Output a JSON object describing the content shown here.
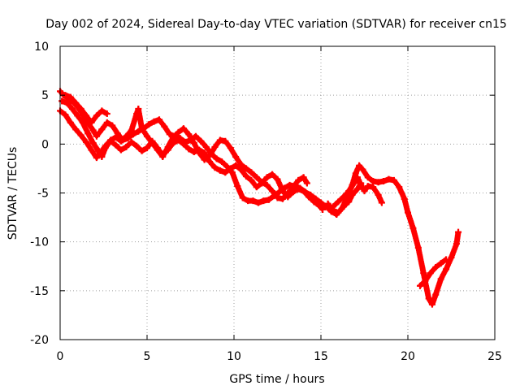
{
  "chart_data": {
    "type": "scatter",
    "title": "Day 002 of 2024, Sidereal Day-to-day VTEC variation (SDTVAR) for receiver cn15",
    "xlabel": "GPS time / hours",
    "ylabel": "SDTVAR / TECUs",
    "xlim": [
      0,
      25
    ],
    "ylim": [
      -20,
      10
    ],
    "xticks": [
      0,
      5,
      10,
      15,
      20,
      25
    ],
    "yticks": [
      -20,
      -15,
      -10,
      -5,
      0,
      5,
      10
    ],
    "xtick_labels": [
      "0",
      "5",
      "10",
      "15",
      "20",
      "25"
    ],
    "ytick_labels": [
      "-20",
      "-15",
      "-10",
      "-5",
      "0",
      "5",
      "10"
    ],
    "grid": true,
    "marker": "+",
    "series": [
      {
        "name": "SDTVAR",
        "color": "#ff0000",
        "tracks": [
          [
            [
              0.0,
              5.4
            ],
            [
              0.2,
              5.0
            ],
            [
              0.5,
              4.6
            ],
            [
              0.8,
              4.2
            ],
            [
              1.0,
              3.8
            ],
            [
              1.3,
              3.0
            ],
            [
              1.6,
              2.2
            ],
            [
              1.9,
              1.4
            ],
            [
              2.1,
              0.8
            ],
            [
              2.4,
              1.5
            ],
            [
              2.7,
              2.2
            ],
            [
              3.0,
              1.9
            ],
            [
              3.3,
              1.1
            ],
            [
              3.6,
              0.4
            ],
            [
              3.9,
              0.6
            ],
            [
              4.2,
              1.0
            ],
            [
              4.5,
              1.3
            ],
            [
              4.8,
              1.6
            ],
            [
              5.1,
              2.0
            ],
            [
              5.4,
              2.3
            ],
            [
              5.7,
              2.5
            ],
            [
              6.0,
              1.8
            ],
            [
              6.3,
              1.0
            ],
            [
              6.6,
              0.8
            ],
            [
              6.9,
              0.6
            ],
            [
              7.2,
              0.2
            ],
            [
              7.5,
              0.4
            ],
            [
              7.8,
              0.8
            ],
            [
              8.1,
              0.3
            ],
            [
              8.4,
              -0.3
            ],
            [
              8.7,
              -1.0
            ],
            [
              9.0,
              -1.5
            ],
            [
              9.3,
              -1.8
            ],
            [
              9.6,
              -2.3
            ],
            [
              9.9,
              -2.9
            ],
            [
              10.2,
              -4.3
            ],
            [
              10.5,
              -5.5
            ],
            [
              10.8,
              -5.8
            ],
            [
              11.1,
              -5.8
            ],
            [
              11.4,
              -6.0
            ],
            [
              11.7,
              -5.8
            ],
            [
              12.0,
              -5.7
            ],
            [
              12.3,
              -5.3
            ],
            [
              12.6,
              -4.9
            ],
            [
              12.9,
              -4.5
            ],
            [
              13.2,
              -4.2
            ],
            [
              13.5,
              -4.3
            ],
            [
              13.8,
              -4.5
            ],
            [
              14.1,
              -4.9
            ],
            [
              14.4,
              -5.2
            ],
            [
              14.7,
              -5.6
            ],
            [
              15.0,
              -6.0
            ],
            [
              15.3,
              -6.4
            ],
            [
              15.6,
              -6.9
            ],
            [
              15.9,
              -7.2
            ],
            [
              16.2,
              -6.6
            ],
            [
              16.5,
              -5.5
            ],
            [
              16.8,
              -4.2
            ],
            [
              17.0,
              -3.0
            ],
            [
              17.2,
              -2.2
            ],
            [
              17.4,
              -2.6
            ],
            [
              17.7,
              -3.4
            ],
            [
              18.0,
              -3.8
            ],
            [
              18.3,
              -3.9
            ],
            [
              18.6,
              -3.8
            ],
            [
              18.9,
              -3.6
            ],
            [
              19.2,
              -3.7
            ],
            [
              19.5,
              -4.4
            ],
            [
              19.8,
              -5.6
            ],
            [
              20.0,
              -7.0
            ],
            [
              20.3,
              -8.6
            ],
            [
              20.6,
              -10.6
            ],
            [
              20.9,
              -13.2
            ],
            [
              21.2,
              -15.8
            ],
            [
              21.4,
              -16.4
            ],
            [
              21.6,
              -15.4
            ],
            [
              21.9,
              -13.8
            ],
            [
              22.2,
              -12.8
            ],
            [
              22.5,
              -11.6
            ],
            [
              22.8,
              -10.2
            ],
            [
              22.9,
              -9.0
            ]
          ],
          [
            [
              0.1,
              4.4
            ],
            [
              0.4,
              4.2
            ],
            [
              0.7,
              3.6
            ],
            [
              1.0,
              2.9
            ],
            [
              1.3,
              2.2
            ],
            [
              1.6,
              1.1
            ],
            [
              1.9,
              0.1
            ],
            [
              2.2,
              -0.7
            ],
            [
              2.4,
              -1.3
            ],
            [
              2.6,
              -0.4
            ],
            [
              2.9,
              0.3
            ],
            [
              3.2,
              -0.1
            ],
            [
              3.5,
              -0.6
            ],
            [
              3.8,
              -0.3
            ],
            [
              4.1,
              0.2
            ],
            [
              4.4,
              -0.2
            ],
            [
              4.7,
              -0.7
            ],
            [
              5.0,
              -0.4
            ],
            [
              5.3,
              0.3
            ],
            [
              5.6,
              -0.4
            ],
            [
              5.9,
              -1.1
            ],
            [
              6.2,
              -0.6
            ],
            [
              6.5,
              0.1
            ],
            [
              6.8,
              0.4
            ],
            [
              7.1,
              0.0
            ],
            [
              7.4,
              -0.5
            ],
            [
              7.7,
              -0.8
            ],
            [
              8.0,
              -0.6
            ],
            [
              8.3,
              -0.9
            ],
            [
              8.6,
              -1.8
            ],
            [
              8.9,
              -2.4
            ],
            [
              9.2,
              -2.7
            ],
            [
              9.5,
              -2.9
            ],
            [
              9.8,
              -2.5
            ],
            [
              10.1,
              -2.2
            ],
            [
              10.4,
              -2.6
            ],
            [
              10.7,
              -3.3
            ],
            [
              11.0,
              -3.7
            ],
            [
              11.3,
              -4.4
            ],
            [
              11.6,
              -4.0
            ],
            [
              11.9,
              -3.4
            ],
            [
              12.2,
              -3.1
            ],
            [
              12.5,
              -3.6
            ],
            [
              12.8,
              -4.8
            ],
            [
              13.1,
              -5.4
            ],
            [
              13.4,
              -4.9
            ],
            [
              13.7,
              -4.6
            ],
            [
              14.0,
              -4.8
            ],
            [
              14.3,
              -5.4
            ],
            [
              14.6,
              -5.9
            ],
            [
              14.9,
              -6.3
            ],
            [
              15.1,
              -6.7
            ]
          ],
          [
            [
              0.0,
              3.4
            ],
            [
              0.3,
              3.0
            ],
            [
              0.6,
              2.2
            ],
            [
              0.9,
              1.5
            ],
            [
              1.2,
              0.9
            ],
            [
              1.5,
              0.2
            ],
            [
              1.8,
              -0.6
            ],
            [
              2.1,
              -1.4
            ],
            [
              2.3,
              -0.9
            ],
            [
              2.6,
              -0.2
            ],
            [
              2.9,
              0.4
            ],
            [
              3.2,
              0.7
            ],
            [
              3.5,
              0.3
            ],
            [
              3.8,
              0.8
            ],
            [
              4.1,
              1.4
            ],
            [
              4.4,
              3.1
            ],
            [
              4.5,
              3.6
            ],
            [
              4.7,
              1.6
            ],
            [
              5.0,
              0.8
            ],
            [
              5.3,
              0.1
            ],
            [
              5.6,
              -0.6
            ],
            [
              5.9,
              -1.3
            ],
            [
              6.2,
              -0.3
            ],
            [
              6.5,
              0.7
            ],
            [
              6.8,
              1.2
            ],
            [
              7.1,
              1.6
            ],
            [
              7.4,
              1.0
            ],
            [
              7.7,
              0.1
            ],
            [
              8.0,
              -0.9
            ],
            [
              8.3,
              -1.6
            ],
            [
              8.6,
              -1.2
            ],
            [
              8.9,
              -0.3
            ],
            [
              9.2,
              0.4
            ],
            [
              9.5,
              0.3
            ],
            [
              9.8,
              -0.4
            ],
            [
              10.1,
              -1.3
            ],
            [
              10.4,
              -2.1
            ],
            [
              10.7,
              -2.5
            ],
            [
              11.0,
              -2.9
            ],
            [
              11.3,
              -3.4
            ],
            [
              11.6,
              -3.9
            ],
            [
              11.9,
              -4.2
            ],
            [
              12.2,
              -4.8
            ],
            [
              12.5,
              -5.5
            ],
            [
              12.8,
              -5.6
            ],
            [
              13.1,
              -5.0
            ],
            [
              13.4,
              -4.4
            ],
            [
              13.7,
              -3.7
            ],
            [
              14.0,
              -3.4
            ],
            [
              14.2,
              -4.0
            ]
          ],
          [
            [
              0.3,
              5.0
            ],
            [
              0.6,
              4.8
            ],
            [
              0.9,
              4.2
            ],
            [
              1.2,
              3.6
            ],
            [
              1.5,
              2.9
            ],
            [
              1.8,
              2.2
            ],
            [
              2.1,
              2.9
            ],
            [
              2.4,
              3.4
            ],
            [
              2.7,
              3.1
            ]
          ],
          [
            [
              15.7,
              -6.4
            ],
            [
              16.0,
              -5.9
            ],
            [
              16.3,
              -5.4
            ],
            [
              16.6,
              -4.8
            ],
            [
              16.9,
              -4.0
            ],
            [
              17.1,
              -3.4
            ],
            [
              17.3,
              -4.2
            ],
            [
              17.5,
              -4.8
            ],
            [
              17.7,
              -4.3
            ],
            [
              18.0,
              -4.4
            ],
            [
              18.3,
              -5.2
            ],
            [
              18.5,
              -6.0
            ]
          ],
          [
            [
              15.4,
              -6.1
            ],
            [
              15.7,
              -6.8
            ],
            [
              16.0,
              -7.0
            ],
            [
              16.3,
              -6.4
            ],
            [
              16.6,
              -5.9
            ],
            [
              16.8,
              -5.2
            ],
            [
              17.1,
              -4.6
            ],
            [
              17.3,
              -4.0
            ]
          ],
          [
            [
              20.7,
              -14.5
            ],
            [
              21.0,
              -14.0
            ],
            [
              21.3,
              -13.2
            ],
            [
              21.6,
              -12.6
            ],
            [
              21.9,
              -12.2
            ],
            [
              22.2,
              -11.8
            ]
          ]
        ]
      }
    ]
  }
}
